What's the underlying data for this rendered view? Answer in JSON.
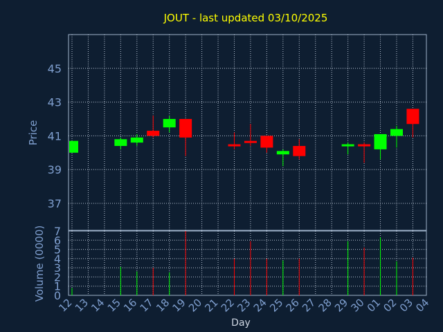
{
  "chart_data": [
    {
      "type": "candlestick",
      "title": "JOUT - last updated 03/10/2025",
      "ylabel": "Price",
      "ylim": [
        35.4,
        47.0
      ],
      "yticks": [
        "45",
        "43",
        "41",
        "39",
        "37"
      ],
      "ytick_values": [
        45,
        43,
        41,
        39,
        37
      ],
      "grid": true,
      "colors": {
        "up": "#00ff00",
        "down": "#ff0000"
      },
      "x": [
        "12",
        "13",
        "14",
        "15",
        "16",
        "17",
        "18",
        "19",
        "20",
        "21",
        "22",
        "23",
        "24",
        "25",
        "26",
        "27",
        "28",
        "29",
        "30",
        "01",
        "02",
        "03",
        "04"
      ],
      "candles": [
        {
          "x": "12",
          "open": 40.0,
          "close": 40.7,
          "high": 40.7,
          "low": 40.0
        },
        {
          "x": "15",
          "open": 40.4,
          "close": 40.8,
          "high": 40.9,
          "low": 40.2
        },
        {
          "x": "16",
          "open": 40.6,
          "close": 40.9,
          "high": 41.1,
          "low": 40.4
        },
        {
          "x": "17",
          "open": 41.3,
          "close": 41.0,
          "high": 42.2,
          "low": 40.9
        },
        {
          "x": "18",
          "open": 41.5,
          "close": 42.0,
          "high": 42.2,
          "low": 41.2
        },
        {
          "x": "19",
          "open": 42.0,
          "close": 40.9,
          "high": 42.0,
          "low": 39.8
        },
        {
          "x": "22",
          "open": 40.5,
          "close": 40.4,
          "high": 41.2,
          "low": 40.2
        },
        {
          "x": "23",
          "open": 40.7,
          "close": 40.6,
          "high": 41.7,
          "low": 40.4
        },
        {
          "x": "24",
          "open": 41.0,
          "close": 40.3,
          "high": 41.0,
          "low": 40.0
        },
        {
          "x": "25",
          "open": 39.9,
          "close": 40.1,
          "high": 40.2,
          "low": 39.2
        },
        {
          "x": "26",
          "open": 40.4,
          "close": 39.8,
          "high": 40.8,
          "low": 39.6
        },
        {
          "x": "29",
          "open": 40.4,
          "close": 40.5,
          "high": 40.6,
          "low": 39.9
        },
        {
          "x": "30",
          "open": 40.5,
          "close": 40.4,
          "high": 40.6,
          "low": 39.4
        },
        {
          "x": "01",
          "open": 40.2,
          "close": 41.1,
          "high": 41.1,
          "low": 39.6
        },
        {
          "x": "02",
          "open": 41.0,
          "close": 41.4,
          "high": 41.6,
          "low": 40.3
        },
        {
          "x": "03",
          "open": 42.6,
          "close": 41.7,
          "high": 42.6,
          "low": 40.9
        }
      ]
    },
    {
      "type": "bar",
      "ylabel": "Volume (0000)",
      "xlabel": "Day",
      "ylim": [
        0,
        7
      ],
      "yticks": [
        "0",
        "1",
        "2",
        "3",
        "4",
        "5",
        "6",
        "7"
      ],
      "ytick_values": [
        0,
        1,
        2,
        3,
        4,
        5,
        6,
        7
      ],
      "volumes": [
        {
          "x": "12",
          "value": 0.8,
          "dir": "up"
        },
        {
          "x": "15",
          "value": 3.1,
          "dir": "up"
        },
        {
          "x": "16",
          "value": 2.6,
          "dir": "up"
        },
        {
          "x": "17",
          "value": 3.0,
          "dir": "down"
        },
        {
          "x": "18",
          "value": 2.5,
          "dir": "up"
        },
        {
          "x": "19",
          "value": 7.0,
          "dir": "down"
        },
        {
          "x": "22",
          "value": 4.0,
          "dir": "down"
        },
        {
          "x": "23",
          "value": 5.9,
          "dir": "down"
        },
        {
          "x": "24",
          "value": 4.0,
          "dir": "down"
        },
        {
          "x": "25",
          "value": 3.8,
          "dir": "up"
        },
        {
          "x": "26",
          "value": 4.0,
          "dir": "down"
        },
        {
          "x": "29",
          "value": 5.9,
          "dir": "up"
        },
        {
          "x": "30",
          "value": 5.2,
          "dir": "down"
        },
        {
          "x": "01",
          "value": 6.3,
          "dir": "up"
        },
        {
          "x": "02",
          "value": 3.7,
          "dir": "up"
        },
        {
          "x": "03",
          "value": 4.1,
          "dir": "down"
        }
      ]
    }
  ]
}
